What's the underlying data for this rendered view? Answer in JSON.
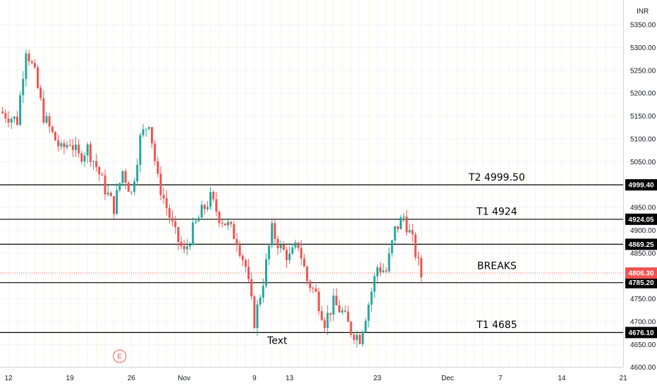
{
  "chart_data": {
    "type": "candlestick",
    "currency_label": "INR",
    "ylim": [
      4595,
      5400
    ],
    "y_ticks": [
      5350,
      5300,
      5250,
      5200,
      5150,
      5100,
      5050,
      4950,
      4900,
      4850,
      4750,
      4700,
      4650,
      4600
    ],
    "x_ticks": [
      {
        "label": "12",
        "day": 12
      },
      {
        "label": "19",
        "day": 19
      },
      {
        "label": "26",
        "day": 26
      },
      {
        "label": "Nov",
        "day": 32
      },
      {
        "label": "9",
        "day": 40
      },
      {
        "label": "13",
        "day": 44
      },
      {
        "label": "23",
        "day": 54
      },
      {
        "label": "Dec",
        "day": 62
      },
      {
        "label": "7",
        "day": 68
      },
      {
        "label": "14",
        "day": 75
      },
      {
        "label": "21",
        "day": 82
      }
    ],
    "levels": [
      {
        "label": "4999.40",
        "value": 4999.4,
        "color": "#000000"
      },
      {
        "label": "4924.05",
        "value": 4924.05,
        "color": "#000000"
      },
      {
        "label": "4869.25",
        "value": 4869.25,
        "color": "#000000"
      },
      {
        "label": "4785.20",
        "value": 4785.2,
        "color": "#000000"
      },
      {
        "label": "4676.10",
        "value": 4676.1,
        "color": "#000000"
      }
    ],
    "last_price": {
      "label": "4806.30",
      "value": 4806.3,
      "color": "#ef5350"
    },
    "annotations": [
      {
        "text": "T2  4999.50",
        "day": 66,
        "value": 5009
      },
      {
        "text": "T1 4924",
        "day": 66,
        "value": 4934
      },
      {
        "text": "BREAKS",
        "day": 66,
        "value": 4815
      },
      {
        "text": "T1 4685",
        "day": 66,
        "value": 4686
      },
      {
        "text": "Text",
        "day": 41,
        "value": 4651
      }
    ],
    "event_marker": {
      "text": "E",
      "day": 24.5,
      "value": 4618
    },
    "up_color": "#26a69a",
    "down_color": "#ef5350",
    "close_path": [
      [
        11,
        5160
      ],
      [
        13,
        5140
      ],
      [
        14,
        5300
      ],
      [
        15,
        5240
      ],
      [
        16,
        5150
      ],
      [
        17,
        5110
      ],
      [
        18,
        5075
      ],
      [
        19,
        5095
      ],
      [
        20,
        5060
      ],
      [
        21,
        5080
      ],
      [
        22,
        5040
      ],
      [
        23,
        4990
      ],
      [
        24,
        4950
      ],
      [
        25,
        5030
      ],
      [
        26,
        4980
      ],
      [
        27,
        5100
      ],
      [
        28,
        5140
      ],
      [
        29,
        5010
      ],
      [
        30,
        4950
      ],
      [
        31,
        4890
      ],
      [
        32,
        4850
      ],
      [
        33,
        4900
      ],
      [
        34,
        4940
      ],
      [
        35,
        4970
      ],
      [
        36,
        4930
      ],
      [
        37,
        4910
      ],
      [
        38,
        4880
      ],
      [
        39,
        4820
      ],
      [
        40,
        4700
      ],
      [
        41,
        4790
      ],
      [
        42,
        4900
      ],
      [
        43,
        4860
      ],
      [
        44,
        4840
      ],
      [
        45,
        4870
      ],
      [
        46,
        4790
      ],
      [
        47,
        4760
      ],
      [
        48,
        4700
      ],
      [
        49,
        4740
      ],
      [
        50,
        4720
      ],
      [
        51,
        4680
      ],
      [
        52,
        4665
      ],
      [
        53,
        4740
      ],
      [
        54,
        4820
      ],
      [
        55,
        4810
      ],
      [
        56,
        4900
      ],
      [
        57,
        4930
      ],
      [
        58,
        4875
      ],
      [
        59,
        4800
      ]
    ]
  }
}
